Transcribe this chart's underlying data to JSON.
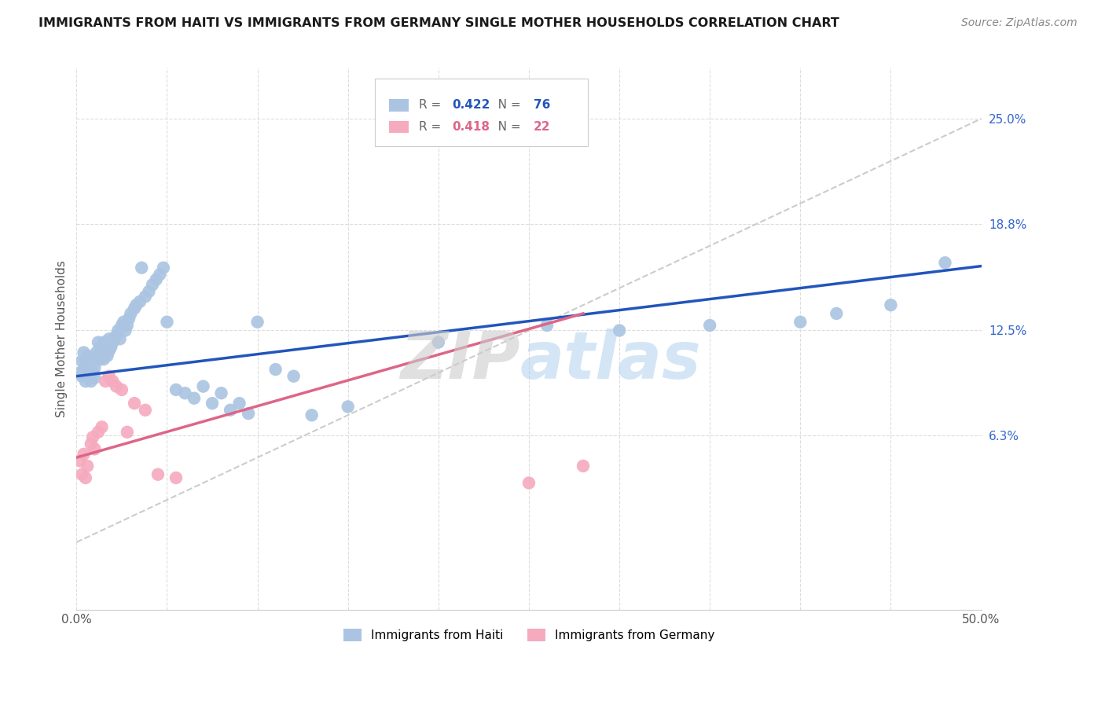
{
  "title": "IMMIGRANTS FROM HAITI VS IMMIGRANTS FROM GERMANY SINGLE MOTHER HOUSEHOLDS CORRELATION CHART",
  "source": "Source: ZipAtlas.com",
  "ylabel": "Single Mother Households",
  "xlim": [
    0.0,
    0.5
  ],
  "ylim": [
    -0.04,
    0.28
  ],
  "ytick_labels_right": [
    "25.0%",
    "18.8%",
    "12.5%",
    "6.3%"
  ],
  "ytick_positions_right": [
    0.25,
    0.188,
    0.125,
    0.063
  ],
  "haiti_R": "0.422",
  "haiti_N": "76",
  "germany_R": "0.418",
  "germany_N": "22",
  "haiti_color": "#aac4e2",
  "germany_color": "#f5aabe",
  "haiti_line_color": "#2255bb",
  "germany_line_color": "#dd6688",
  "diagonal_color": "#cccccc",
  "background_color": "#ffffff",
  "haiti_line_x0": 0.0,
  "haiti_line_y0": 0.098,
  "haiti_line_x1": 0.5,
  "haiti_line_y1": 0.163,
  "germany_line_x0": 0.0,
  "germany_line_y0": 0.05,
  "germany_line_x1": 0.28,
  "germany_line_y1": 0.135,
  "haiti_x": [
    0.002,
    0.003,
    0.003,
    0.004,
    0.004,
    0.005,
    0.005,
    0.006,
    0.006,
    0.007,
    0.007,
    0.008,
    0.008,
    0.009,
    0.009,
    0.01,
    0.01,
    0.011,
    0.011,
    0.012,
    0.012,
    0.013,
    0.013,
    0.014,
    0.015,
    0.015,
    0.016,
    0.016,
    0.017,
    0.018,
    0.018,
    0.019,
    0.02,
    0.021,
    0.022,
    0.023,
    0.024,
    0.025,
    0.026,
    0.027,
    0.028,
    0.029,
    0.03,
    0.032,
    0.033,
    0.035,
    0.036,
    0.038,
    0.04,
    0.042,
    0.044,
    0.046,
    0.048,
    0.05,
    0.055,
    0.06,
    0.065,
    0.07,
    0.075,
    0.08,
    0.085,
    0.09,
    0.095,
    0.1,
    0.11,
    0.12,
    0.13,
    0.15,
    0.2,
    0.26,
    0.3,
    0.35,
    0.4,
    0.42,
    0.45,
    0.48
  ],
  "haiti_y": [
    0.1,
    0.107,
    0.098,
    0.112,
    0.102,
    0.108,
    0.095,
    0.11,
    0.098,
    0.105,
    0.1,
    0.108,
    0.095,
    0.1,
    0.108,
    0.103,
    0.097,
    0.108,
    0.112,
    0.118,
    0.11,
    0.115,
    0.108,
    0.112,
    0.118,
    0.108,
    0.115,
    0.112,
    0.11,
    0.12,
    0.113,
    0.115,
    0.118,
    0.12,
    0.122,
    0.125,
    0.12,
    0.128,
    0.13,
    0.125,
    0.128,
    0.132,
    0.135,
    0.138,
    0.14,
    0.142,
    0.162,
    0.145,
    0.148,
    0.152,
    0.155,
    0.158,
    0.162,
    0.13,
    0.09,
    0.088,
    0.085,
    0.092,
    0.082,
    0.088,
    0.078,
    0.082,
    0.076,
    0.13,
    0.102,
    0.098,
    0.075,
    0.08,
    0.118,
    0.128,
    0.125,
    0.128,
    0.13,
    0.135,
    0.14,
    0.165
  ],
  "germany_x": [
    0.002,
    0.003,
    0.004,
    0.005,
    0.006,
    0.008,
    0.009,
    0.01,
    0.012,
    0.014,
    0.016,
    0.018,
    0.02,
    0.022,
    0.025,
    0.028,
    0.032,
    0.038,
    0.045,
    0.055,
    0.25,
    0.28
  ],
  "germany_y": [
    0.048,
    0.04,
    0.052,
    0.038,
    0.045,
    0.058,
    0.062,
    0.055,
    0.065,
    0.068,
    0.095,
    0.098,
    0.095,
    0.092,
    0.09,
    0.065,
    0.082,
    0.078,
    0.04,
    0.038,
    0.035,
    0.045
  ]
}
